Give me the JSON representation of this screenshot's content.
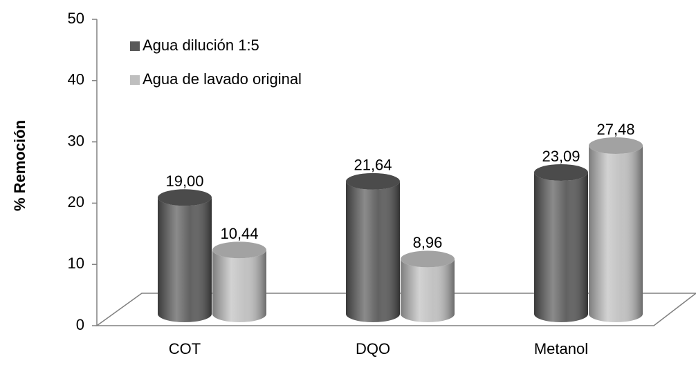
{
  "chart_data": {
    "type": "bar3d",
    "ylabel": "% Remoción",
    "categories": [
      "COT",
      "DQO",
      "Metanol"
    ],
    "series": [
      {
        "name": "Agua dilución 1:5",
        "color": "#595959",
        "values": [
          19.0,
          21.64,
          23.09
        ],
        "value_labels": [
          "19,00",
          "21,64",
          "23,09"
        ]
      },
      {
        "name": "Agua de lavado original",
        "color": "#bfbfbf",
        "values": [
          10.44,
          8.96,
          27.48
        ],
        "value_labels": [
          "10,44",
          "8,96",
          "27,48"
        ]
      }
    ],
    "ylim": [
      0,
      50
    ],
    "yticks": [
      0,
      10,
      20,
      30,
      40,
      50
    ],
    "legend": "upper left"
  }
}
